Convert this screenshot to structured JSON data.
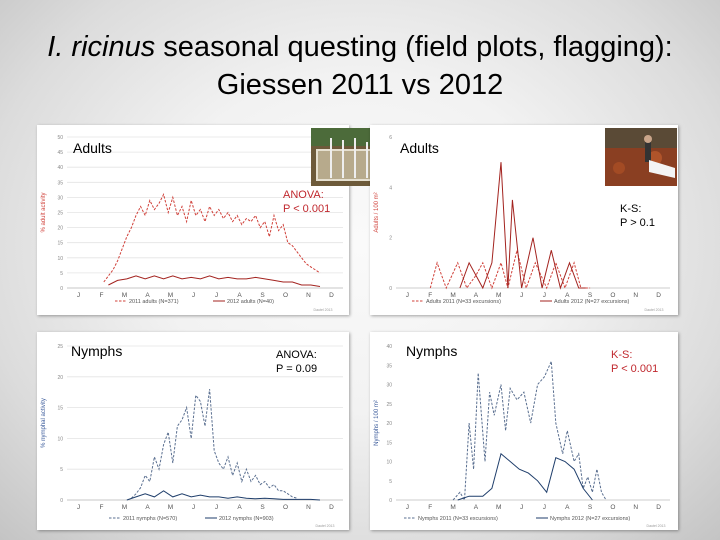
{
  "slide": {
    "title_species": "I. ricinus",
    "title_rest": " seasonal questing (field plots, flagging):",
    "title_line2": "Giessen 2011 vs 2012"
  },
  "colors": {
    "series_2011_adults": "#d0413a",
    "series_2012_adults": "#a3231f",
    "series_2011_nymphs": "#5a6f90",
    "series_2012_nymphs": "#1f3e6b",
    "grid": "#e4e4e4",
    "axis_text": "#888888",
    "stat_red": "#c0282e"
  },
  "panels": [
    {
      "id": "adults-plots",
      "stage_label": "Adults",
      "stat_lines": [
        "ANOVA:",
        "P < 0.001"
      ],
      "stat_color": "red",
      "has_photo": true,
      "photo_icon": "field-plot-photo-icon"
    },
    {
      "id": "adults-flagging",
      "stage_label": "Adults",
      "stat_lines": [
        "K-S:",
        "P > 0.1"
      ],
      "stat_color": "black",
      "has_photo": true,
      "photo_icon": "flagging-photo-icon"
    },
    {
      "id": "nymphs-plots",
      "stage_label": "Nymphs",
      "stat_lines": [
        "ANOVA:",
        "P = 0.09"
      ],
      "stat_color": "black",
      "has_photo": false
    },
    {
      "id": "nymphs-flagging",
      "stage_label": "Nymphs",
      "stat_lines": [
        "K-S:",
        "P < 0.001"
      ],
      "stat_color": "red",
      "has_photo": false
    }
  ],
  "chart_data": [
    {
      "type": "line",
      "ylabel": "% adult activity",
      "ylim": [
        0,
        50
      ],
      "yticks": [
        0,
        5,
        10,
        15,
        20,
        25,
        30,
        35,
        40,
        45,
        50
      ],
      "xticks": [
        "J",
        "F",
        "M",
        "A",
        "M",
        "J",
        "J",
        "A",
        "S",
        "O",
        "N",
        "D"
      ],
      "grid": true,
      "legend_placement": "bottom",
      "credit": "Dautel 2013",
      "series": [
        {
          "name": "2011 adults (N=371)",
          "style": "dashed",
          "x": [
            2.6,
            2.8,
            3.0,
            3.2,
            3.4,
            3.6,
            3.8,
            4.0,
            4.2,
            4.4,
            4.6,
            4.8,
            5.0,
            5.2,
            5.4,
            5.6,
            5.8,
            6.0,
            6.2,
            6.4,
            6.6,
            6.8,
            7.0,
            7.2,
            7.4,
            7.6,
            7.8,
            8.0,
            8.2,
            8.4,
            8.6,
            8.8,
            9.0,
            9.2,
            9.4,
            9.6,
            9.8,
            10.0,
            10.2,
            10.4,
            10.6,
            10.8,
            11.0,
            11.2,
            11.4,
            11.6,
            11.8,
            12.0
          ],
          "values": [
            2,
            4,
            6,
            9,
            13,
            17,
            20,
            24,
            27,
            24,
            29,
            26,
            28,
            31,
            25,
            30,
            24,
            27,
            22,
            29,
            24,
            26,
            22,
            27,
            24,
            26,
            23,
            25,
            22,
            24,
            21,
            23,
            22,
            24,
            20,
            22,
            17,
            24,
            19,
            21,
            15,
            14,
            12,
            10,
            8,
            7,
            6,
            5
          ]
        },
        {
          "name": "2012 adults (N=40)",
          "style": "solid",
          "x": [
            2.8,
            3.2,
            3.6,
            4.0,
            4.4,
            4.8,
            5.2,
            5.6,
            6.0,
            6.4,
            6.8,
            7.2,
            7.6,
            8.0,
            8.4,
            8.8,
            9.2,
            9.6,
            10.0,
            10.4,
            10.8,
            11.2,
            11.6,
            12.0
          ],
          "values": [
            1,
            2.5,
            3,
            4,
            3,
            4,
            3,
            4,
            3,
            3.5,
            3,
            4,
            3,
            3.5,
            3,
            3,
            3.5,
            3,
            2.5,
            2,
            2,
            1,
            1,
            0.5
          ]
        }
      ]
    },
    {
      "type": "line",
      "ylabel": "Adults / 100 m²",
      "ylim": [
        0,
        6
      ],
      "yticks": [
        0,
        2,
        4,
        6
      ],
      "xticks": [
        "J",
        "F",
        "M",
        "A",
        "M",
        "J",
        "J",
        "A",
        "S",
        "O",
        "N",
        "D"
      ],
      "grid": false,
      "legend_placement": "bottom",
      "credit": "Dautel 2013",
      "series": [
        {
          "name": "Adults 2011 (N=33 excursions)",
          "style": "dashed",
          "x": [
            2.5,
            2.8,
            3.2,
            3.7,
            4.1,
            4.5,
            4.8,
            5.2,
            5.6,
            5.9,
            6.3,
            6.7,
            7.1,
            7.6,
            8.0,
            8.4,
            8.8,
            9.1,
            9.5
          ],
          "values": [
            0,
            1,
            0,
            1,
            0,
            0.5,
            1,
            0,
            1,
            0,
            1.5,
            0,
            1,
            0,
            1,
            0,
            1,
            0,
            0
          ]
        },
        {
          "name": "Adults 2012 (N=27 excursions)",
          "style": "solid",
          "x": [
            3.8,
            4.2,
            4.8,
            5.2,
            5.6,
            5.9,
            6.1,
            6.5,
            7.0,
            7.4,
            7.8,
            8.2,
            8.6,
            9.0,
            9.3
          ],
          "values": [
            0,
            1,
            0,
            1,
            5,
            0,
            3.5,
            0,
            2,
            0,
            1.5,
            0,
            1,
            0,
            0
          ]
        }
      ]
    },
    {
      "type": "line",
      "ylabel": "% nymphal activity",
      "ylim": [
        0,
        25
      ],
      "yticks": [
        0,
        5,
        10,
        15,
        20,
        25
      ],
      "xticks": [
        "J",
        "F",
        "M",
        "A",
        "M",
        "J",
        "J",
        "A",
        "S",
        "O",
        "N",
        "D"
      ],
      "grid": true,
      "legend_placement": "bottom",
      "credit": "Dautel 2013",
      "series": [
        {
          "name": "2011 nymphs (N=570)",
          "style": "dashed",
          "x": [
            3.8,
            4.0,
            4.2,
            4.4,
            4.6,
            4.8,
            5.0,
            5.2,
            5.4,
            5.6,
            5.8,
            6.0,
            6.2,
            6.4,
            6.6,
            6.8,
            7.0,
            7.2,
            7.4,
            7.6,
            7.8,
            8.0,
            8.2,
            8.4,
            8.6,
            8.8,
            9.0,
            9.2,
            9.4,
            9.6,
            9.8,
            10.0,
            10.2,
            10.4,
            10.6,
            10.8,
            11.0
          ],
          "values": [
            0.3,
            1,
            2,
            4,
            3,
            7,
            5,
            9,
            11,
            6,
            12,
            13,
            15,
            10,
            17,
            16,
            12,
            18,
            8,
            6,
            5,
            7,
            4,
            6,
            3,
            5,
            3,
            4,
            2.5,
            3,
            2,
            2.5,
            1.5,
            1.5,
            1,
            0.5,
            0.3
          ]
        },
        {
          "name": "2012 nymphs (N=903)",
          "style": "solid",
          "x": [
            3.6,
            4.0,
            4.4,
            4.8,
            5.2,
            5.6,
            6.0,
            6.4,
            6.8,
            7.2,
            7.6,
            8.0,
            8.4,
            8.8,
            9.2,
            9.6,
            10.0,
            10.4,
            10.8,
            11.2,
            11.6,
            12.0
          ],
          "values": [
            0,
            0.5,
            1,
            0.5,
            1.5,
            0.5,
            1,
            0.5,
            0.8,
            0.5,
            0.5,
            0.3,
            0.5,
            0.3,
            0.2,
            0.3,
            0.2,
            0.1,
            0.1,
            0.1,
            0.1,
            0
          ]
        }
      ]
    },
    {
      "type": "line",
      "ylabel": "Nymphs / 100 m²",
      "ylim": [
        0,
        40
      ],
      "yticks": [
        0,
        5,
        10,
        15,
        20,
        25,
        30,
        35,
        40
      ],
      "xticks": [
        "J",
        "F",
        "M",
        "A",
        "M",
        "J",
        "J",
        "A",
        "S",
        "O",
        "N",
        "D"
      ],
      "grid": false,
      "legend_placement": "bottom",
      "credit": "Dautel 2013",
      "series": [
        {
          "name": "Nymphs 2011 (N=33 excursions)",
          "style": "dashed",
          "x": [
            3.5,
            3.8,
            4.0,
            4.2,
            4.4,
            4.6,
            4.9,
            5.1,
            5.3,
            5.6,
            5.8,
            6.0,
            6.3,
            6.6,
            6.9,
            7.2,
            7.5,
            7.8,
            8.0,
            8.3,
            8.5,
            8.8,
            9.0,
            9.2,
            9.4,
            9.6,
            9.8,
            10.0,
            10.2
          ],
          "values": [
            0,
            2,
            0,
            20,
            8,
            33,
            10,
            28,
            22,
            30,
            18,
            29,
            26,
            28,
            20,
            30,
            32,
            36,
            20,
            12,
            18,
            10,
            12,
            3,
            6,
            2,
            8,
            2,
            0
          ]
        },
        {
          "name": "Nymphs 2012 (N=27 excursions)",
          "style": "solid",
          "x": [
            3.7,
            4.2,
            4.8,
            5.2,
            5.6,
            6.0,
            6.4,
            6.8,
            7.2,
            7.6,
            8.0,
            8.4,
            8.8,
            9.2,
            9.6
          ],
          "values": [
            0,
            1,
            1,
            3,
            12,
            10,
            8,
            7,
            5,
            2,
            11,
            10,
            8,
            3,
            0
          ]
        }
      ]
    }
  ]
}
